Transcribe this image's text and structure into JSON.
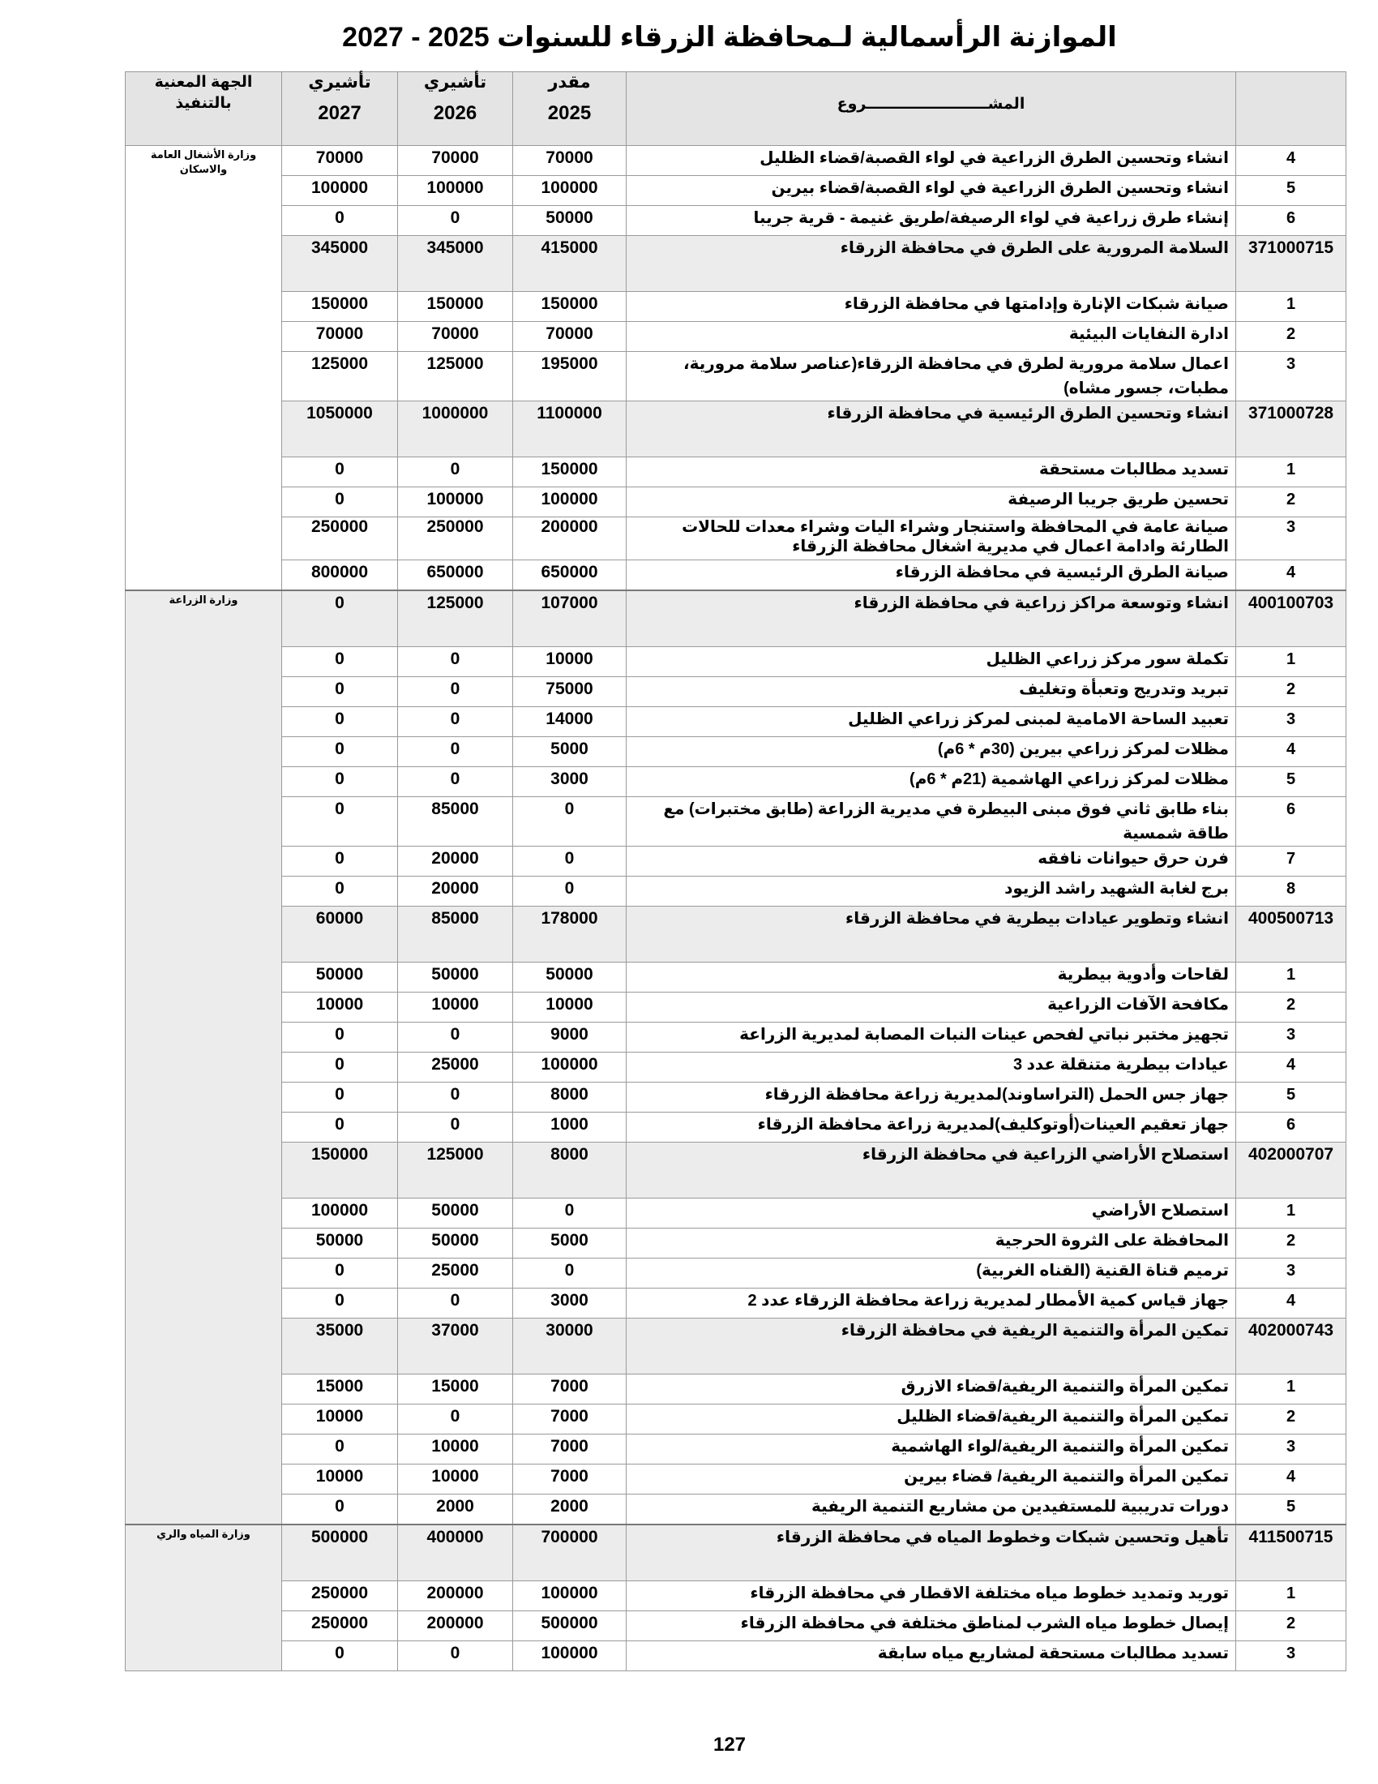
{
  "title": "الموازنة الرأسمالية لـمحافظة الزرقاء للسنوات 2025 - 2027",
  "header": {
    "project": "المشـــــــــــــــــــــــروع",
    "y2025_label": "مقدر",
    "y2025": "2025",
    "y2026_label": "تأشيري",
    "y2026": "2026",
    "y2027_label": "تأشيري",
    "y2027": "2027",
    "agency": "الجهة المعنية بالتنفيذ"
  },
  "sections": [
    {
      "agency": "وزارة الأشغال العامة والاسكان",
      "rows": [
        {
          "no": "4",
          "name": "انشاء وتحسين الطرق الزراعية في لواء القصبة/قضاء الظليل",
          "v2025": "70000",
          "v2026": "70000",
          "v2027": "70000"
        },
        {
          "no": "5",
          "name": "انشاء وتحسين الطرق الزراعية في لواء القصبة/قضاء بيرين",
          "v2025": "100000",
          "v2026": "100000",
          "v2027": "100000"
        },
        {
          "no": "6",
          "name": "إنشاء طرق زراعية في لواء الرصيفة/طريق غنيمة - قرية جريبا",
          "v2025": "50000",
          "v2026": "0",
          "v2027": "0"
        },
        {
          "no": "371000715",
          "group": true,
          "name": "السلامة المرورية على الطرق في محافظة الزرقاء",
          "v2025": "415000",
          "v2026": "345000",
          "v2027": "345000"
        },
        {
          "no": "1",
          "name": "صيانة شبكات الإنارة وإدامتها في محافظة الزرقاء",
          "v2025": "150000",
          "v2026": "150000",
          "v2027": "150000"
        },
        {
          "no": "2",
          "name": "ادارة النفايات البيئية",
          "v2025": "70000",
          "v2026": "70000",
          "v2027": "70000"
        },
        {
          "no": "3",
          "name": "اعمال سلامة مرورية لطرق في محافظة الزرقاء(عناصر سلامة مرورية، مطبات، جسور مشاه)",
          "v2025": "195000",
          "v2026": "125000",
          "v2027": "125000"
        },
        {
          "no": "371000728",
          "group": true,
          "name": "انشاء وتحسين الطرق الرئيسية في محافظة الزرقاء",
          "v2025": "1100000",
          "v2026": "1000000",
          "v2027": "1050000"
        },
        {
          "no": "1",
          "name": "تسديد مطالبات مستحقة",
          "v2025": "150000",
          "v2026": "0",
          "v2027": "0"
        },
        {
          "no": "2",
          "name": "تحسين طريق جريبا الرصيفة",
          "v2025": "100000",
          "v2026": "100000",
          "v2027": "0"
        },
        {
          "no": "3",
          "wrap": true,
          "name": "صيانة عامة في المحافظة واستنجار وشراء اليات وشراء معدات للحالات الطارئة وادامة  اعمال في مديرية اشغال محافظة الزرقاء",
          "v2025": "200000",
          "v2026": "250000",
          "v2027": "250000"
        },
        {
          "no": "4",
          "name": "صيانة الطرق الرئيسية في محافظة الزرقاء",
          "v2025": "650000",
          "v2026": "650000",
          "v2027": "800000"
        }
      ]
    },
    {
      "agency": "وزارة الزراعة",
      "rows": [
        {
          "no": "400100703",
          "group": true,
          "name": "انشاء وتوسعة مراكز زراعية في محافظة الزرقاء",
          "v2025": "107000",
          "v2026": "125000",
          "v2027": "0"
        },
        {
          "no": "1",
          "name": "تكملة سور مركز زراعي الظليل",
          "v2025": "10000",
          "v2026": "0",
          "v2027": "0"
        },
        {
          "no": "2",
          "name": "تبريد وتدريج وتعبأة وتغليف",
          "v2025": "75000",
          "v2026": "0",
          "v2027": "0"
        },
        {
          "no": "3",
          "name": "تعبيد الساحة الامامية لمبنى لمركز زراعي الظليل",
          "v2025": "14000",
          "v2026": "0",
          "v2027": "0"
        },
        {
          "no": "4",
          "name": "مظلات لمركز زراعي بيرين (30م * 6م)",
          "v2025": "5000",
          "v2026": "0",
          "v2027": "0"
        },
        {
          "no": "5",
          "name": "مظلات لمركز زراعي الهاشمية (21م * 6م)",
          "v2025": "3000",
          "v2026": "0",
          "v2027": "0"
        },
        {
          "no": "6",
          "name": "بناء طابق ثاني فوق مبنى البيطرة في مديرية الزراعة (طابق مختبرات) مع طاقة شمسية",
          "v2025": "0",
          "v2026": "85000",
          "v2027": "0"
        },
        {
          "no": "7",
          "name": "فرن حرق حيوانات نافقه",
          "v2025": "0",
          "v2026": "20000",
          "v2027": "0"
        },
        {
          "no": "8",
          "name": "برج لغابة الشهيد راشد الزيود",
          "v2025": "0",
          "v2026": "20000",
          "v2027": "0"
        },
        {
          "no": "400500713",
          "group": true,
          "name": "انشاء وتطوير  عيادات بيطرية في محافظة الزرقاء",
          "v2025": "178000",
          "v2026": "85000",
          "v2027": "60000"
        },
        {
          "no": "1",
          "name": "لقاحات وأدوية بيطرية",
          "v2025": "50000",
          "v2026": "50000",
          "v2027": "50000"
        },
        {
          "no": "2",
          "name": "مكافحة الآفات الزراعية",
          "v2025": "10000",
          "v2026": "10000",
          "v2027": "10000"
        },
        {
          "no": "3",
          "name": "تجهيز مختبر نباتي لفحص عينات النبات المصابة لمديرية الزراعة",
          "v2025": "9000",
          "v2026": "0",
          "v2027": "0"
        },
        {
          "no": "4",
          "name": "عيادات بيطرية متنقلة عدد 3",
          "v2025": "100000",
          "v2026": "25000",
          "v2027": "0"
        },
        {
          "no": "5",
          "name": "جهاز جس الحمل (التراساوند)لمديرية زراعة محافظة الزرقاء",
          "v2025": "8000",
          "v2026": "0",
          "v2027": "0"
        },
        {
          "no": "6",
          "name": "جهاز تعقيم العينات(أوتوكليف)لمديرية زراعة محافظة الزرقاء",
          "v2025": "1000",
          "v2026": "0",
          "v2027": "0"
        },
        {
          "no": "402000707",
          "group": true,
          "name": "استصلاح الأراضي الزراعية في محافظة الزرقاء",
          "v2025": "8000",
          "v2026": "125000",
          "v2027": "150000"
        },
        {
          "no": "1",
          "name": "استصلاح الأراضي",
          "v2025": "0",
          "v2026": "50000",
          "v2027": "100000"
        },
        {
          "no": "2",
          "name": "المحافظة على الثروة الحرجية",
          "v2025": "5000",
          "v2026": "50000",
          "v2027": "50000"
        },
        {
          "no": "3",
          "name": "ترميم قناة القنية (القناه الغربية)",
          "v2025": "0",
          "v2026": "25000",
          "v2027": "0"
        },
        {
          "no": "4",
          "name": "جهاز قياس كمية الأمطار لمديرية زراعة محافظة الزرقاء عدد 2",
          "v2025": "3000",
          "v2026": "0",
          "v2027": "0"
        },
        {
          "no": "402000743",
          "group": true,
          "name": "تمكين المرأة والتنمية الريفية في محافظة الزرقاء",
          "v2025": "30000",
          "v2026": "37000",
          "v2027": "35000"
        },
        {
          "no": "1",
          "name": "تمكين المرأة والتنمية الريفية/قضاء الازرق",
          "v2025": "7000",
          "v2026": "15000",
          "v2027": "15000"
        },
        {
          "no": "2",
          "name": "تمكين المرأة والتنمية الريفية/قضاء الظليل",
          "v2025": "7000",
          "v2026": "0",
          "v2027": "10000"
        },
        {
          "no": "3",
          "name": "تمكين المرأة والتنمية الريفية/لواء الهاشمية",
          "v2025": "7000",
          "v2026": "10000",
          "v2027": "0"
        },
        {
          "no": "4",
          "name": "تمكين المرأة والتنمية الريفية/ قضاء بيرين",
          "v2025": "7000",
          "v2026": "10000",
          "v2027": "10000"
        },
        {
          "no": "5",
          "name": "دورات تدريبية للمستفيدين من مشاريع التنمية الريفية",
          "v2025": "2000",
          "v2026": "2000",
          "v2027": "0"
        }
      ]
    },
    {
      "agency": "وزارة المياه والري",
      "rows": [
        {
          "no": "411500715",
          "group": true,
          "name": "تأهيل وتحسين شبكات وخطوط المياه في محافظة الزرقاء",
          "v2025": "700000",
          "v2026": "400000",
          "v2027": "500000"
        },
        {
          "no": "1",
          "name": "توريد وتمديد خطوط مياه مختلفة الاقطار في محافظة الزرقاء",
          "v2025": "100000",
          "v2026": "200000",
          "v2027": "250000"
        },
        {
          "no": "2",
          "name": "إيصال خطوط مياه الشرب لمناطق مختلفة في محافظة الزرقاء",
          "v2025": "500000",
          "v2026": "200000",
          "v2027": "250000"
        },
        {
          "no": "3",
          "name": "تسديد مطالبات مستحقة لمشاريع مياه سابقة",
          "v2025": "100000",
          "v2026": "0",
          "v2027": "0"
        }
      ]
    }
  ],
  "page_number": "127"
}
